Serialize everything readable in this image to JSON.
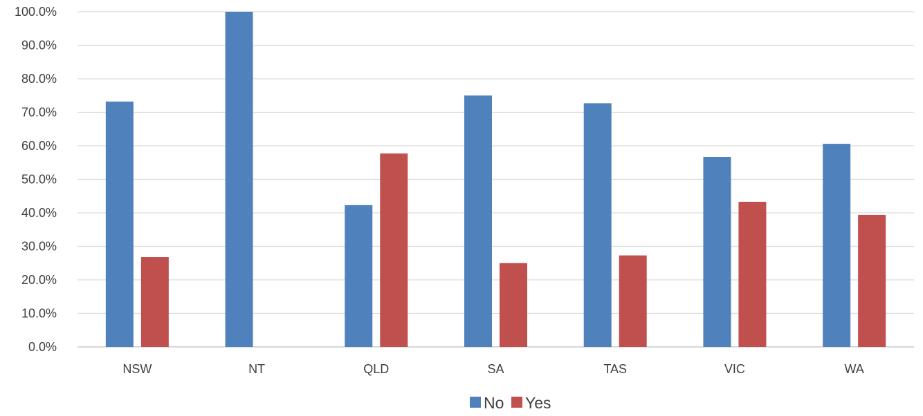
{
  "chart_data": {
    "type": "bar",
    "title": "",
    "xlabel": "",
    "ylabel": "",
    "categories": [
      "NSW",
      "NT",
      "QLD",
      "SA",
      "TAS",
      "VIC",
      "WA"
    ],
    "series": [
      {
        "name": "No",
        "color": "#4F81BD",
        "values": [
          73.2,
          100.0,
          42.3,
          75.0,
          72.7,
          56.7,
          60.6
        ]
      },
      {
        "name": "Yes",
        "color": "#C0504D",
        "values": [
          26.8,
          0.0,
          57.7,
          25.0,
          27.3,
          43.3,
          39.4
        ]
      }
    ],
    "ylim": [
      0,
      100
    ],
    "yticks": [
      "0.0%",
      "10.0%",
      "20.0%",
      "30.0%",
      "40.0%",
      "50.0%",
      "60.0%",
      "70.0%",
      "80.0%",
      "90.0%",
      "100.0%"
    ],
    "grid": true,
    "legend_position": "bottom"
  }
}
